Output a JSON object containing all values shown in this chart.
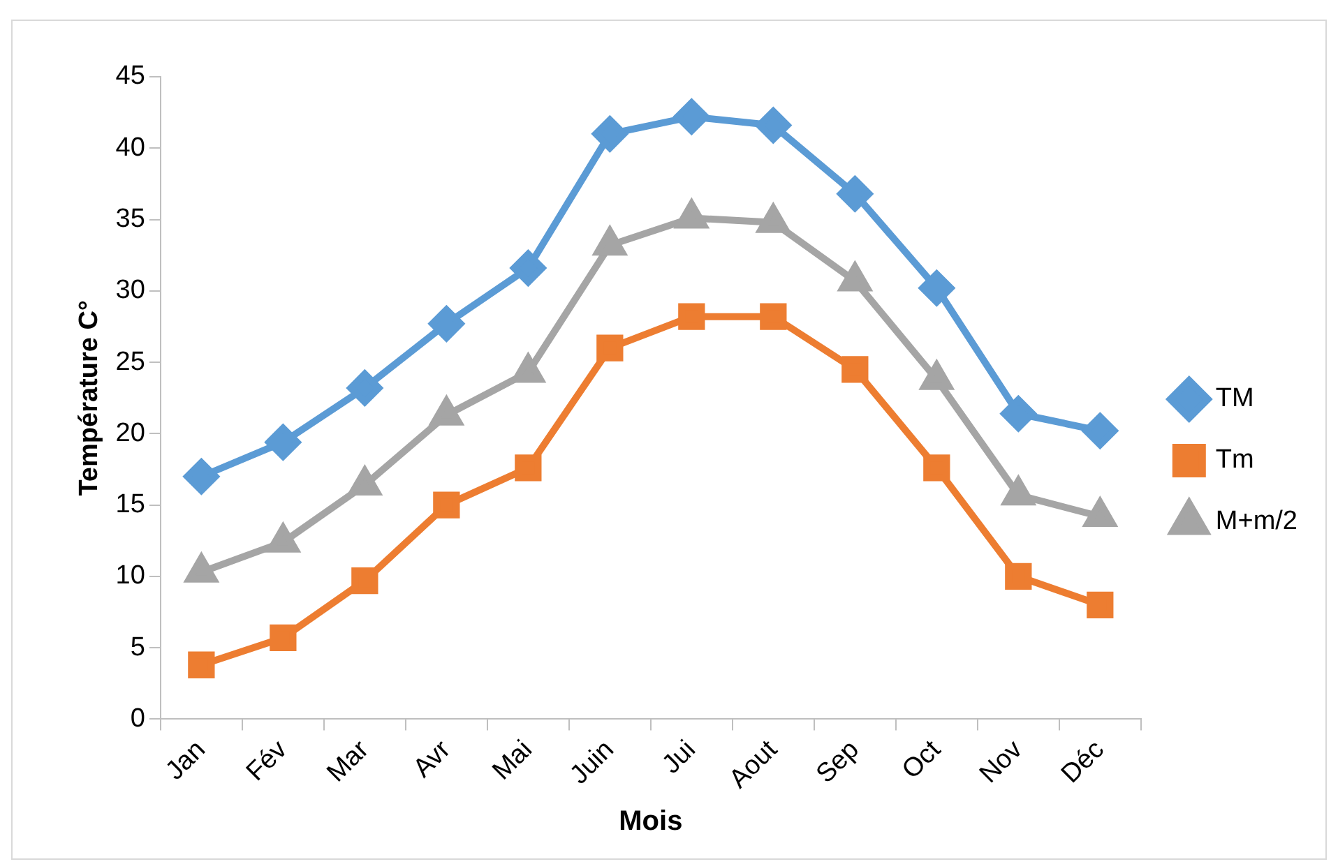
{
  "chart_data": {
    "type": "line",
    "xlabel": "Mois",
    "ylabel": "Température C°",
    "categories": [
      "Jan",
      "Fév",
      "Mar",
      "Avr",
      "Mai",
      "Juin",
      "Jui",
      "Aout",
      "Sep",
      "Oct",
      "Nov",
      "Déc"
    ],
    "series": [
      {
        "name": "TM",
        "color": "#5b9bd5",
        "marker": "diamond",
        "values": [
          17,
          19.4,
          23.2,
          27.7,
          31.6,
          41,
          42.2,
          41.6,
          36.8,
          30.2,
          21.4,
          20.2
        ]
      },
      {
        "name": "Tm",
        "color": "#ed7d31",
        "marker": "square",
        "values": [
          3.8,
          5.7,
          9.7,
          15,
          17.6,
          26,
          28.2,
          28.2,
          24.5,
          17.6,
          10,
          8
        ]
      },
      {
        "name": "M+m/2",
        "color": "#a5a5a5",
        "marker": "triangle",
        "values": [
          10.3,
          12.4,
          16.4,
          21.3,
          24.3,
          33.2,
          35.1,
          34.8,
          30.7,
          23.8,
          15.7,
          14.2
        ]
      }
    ],
    "ylim": [
      0,
      45
    ],
    "yticks": [
      0,
      5,
      10,
      15,
      20,
      25,
      30,
      35,
      40,
      45
    ],
    "grid": false,
    "legend": "right",
    "line_style": "solid"
  }
}
